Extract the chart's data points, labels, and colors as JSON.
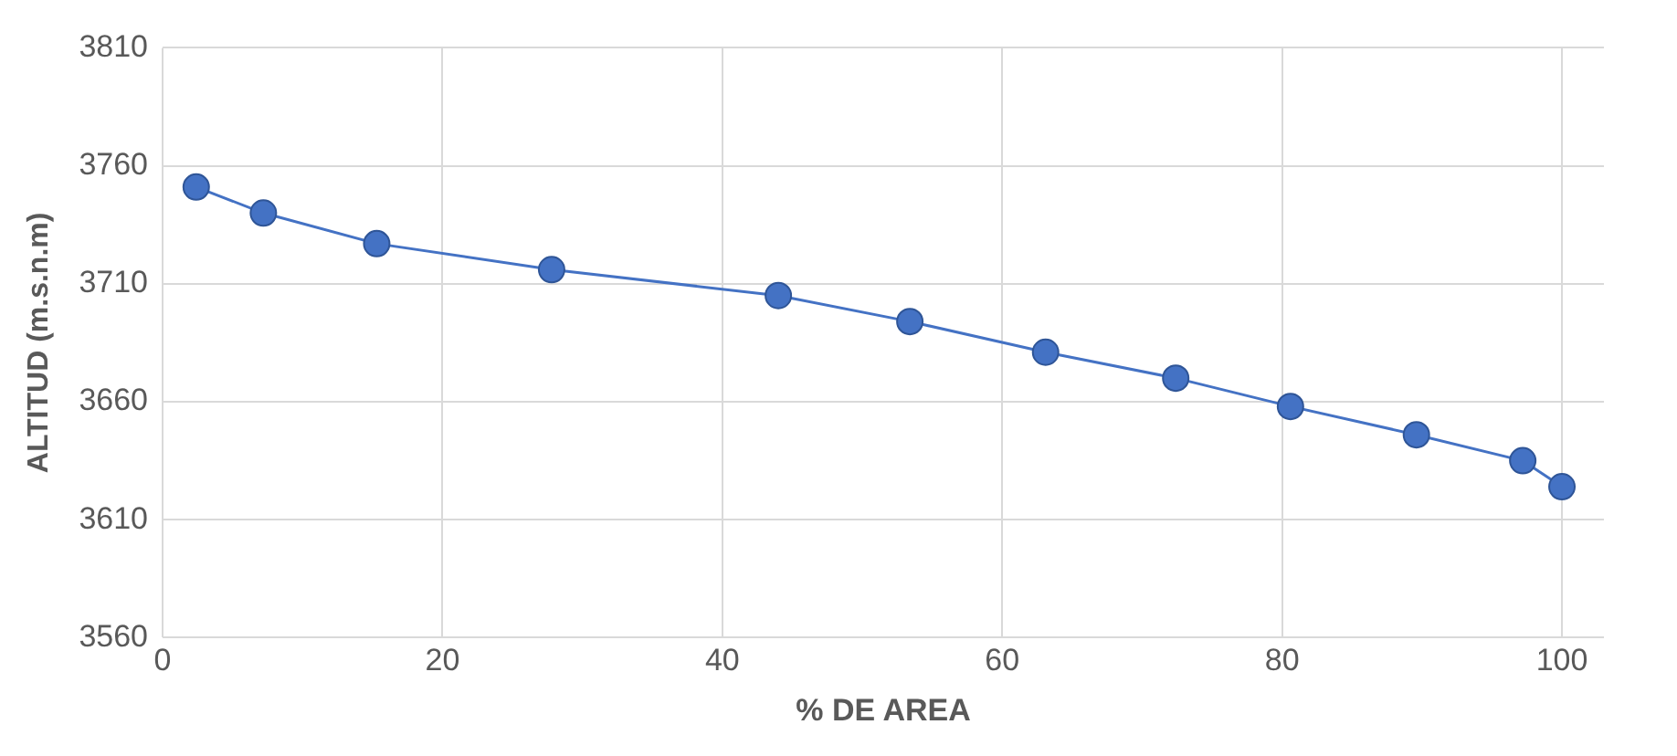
{
  "chart_data": {
    "type": "line",
    "xlabel": "% DE AREA",
    "ylabel": "ALTITUD (m.s.n.m)",
    "x": [
      2.4,
      7.2,
      15.3,
      27.8,
      44.0,
      53.4,
      63.1,
      72.4,
      80.6,
      89.6,
      97.2,
      100
    ],
    "series": [
      {
        "color": "#4472c4",
        "values": [
          3751,
          3740,
          3727,
          3716,
          3705,
          3694,
          3681,
          3670,
          3658,
          3646,
          3635,
          3624
        ]
      }
    ],
    "xlim": [
      0,
      103
    ],
    "xticks": [
      0,
      20,
      40,
      60,
      80,
      100
    ],
    "ylim": [
      3560,
      3810
    ],
    "yticks": [
      3560,
      3610,
      3660,
      3710,
      3760,
      3810
    ],
    "grid": true,
    "legend": false,
    "marker": "circle",
    "line_style": "solid"
  }
}
